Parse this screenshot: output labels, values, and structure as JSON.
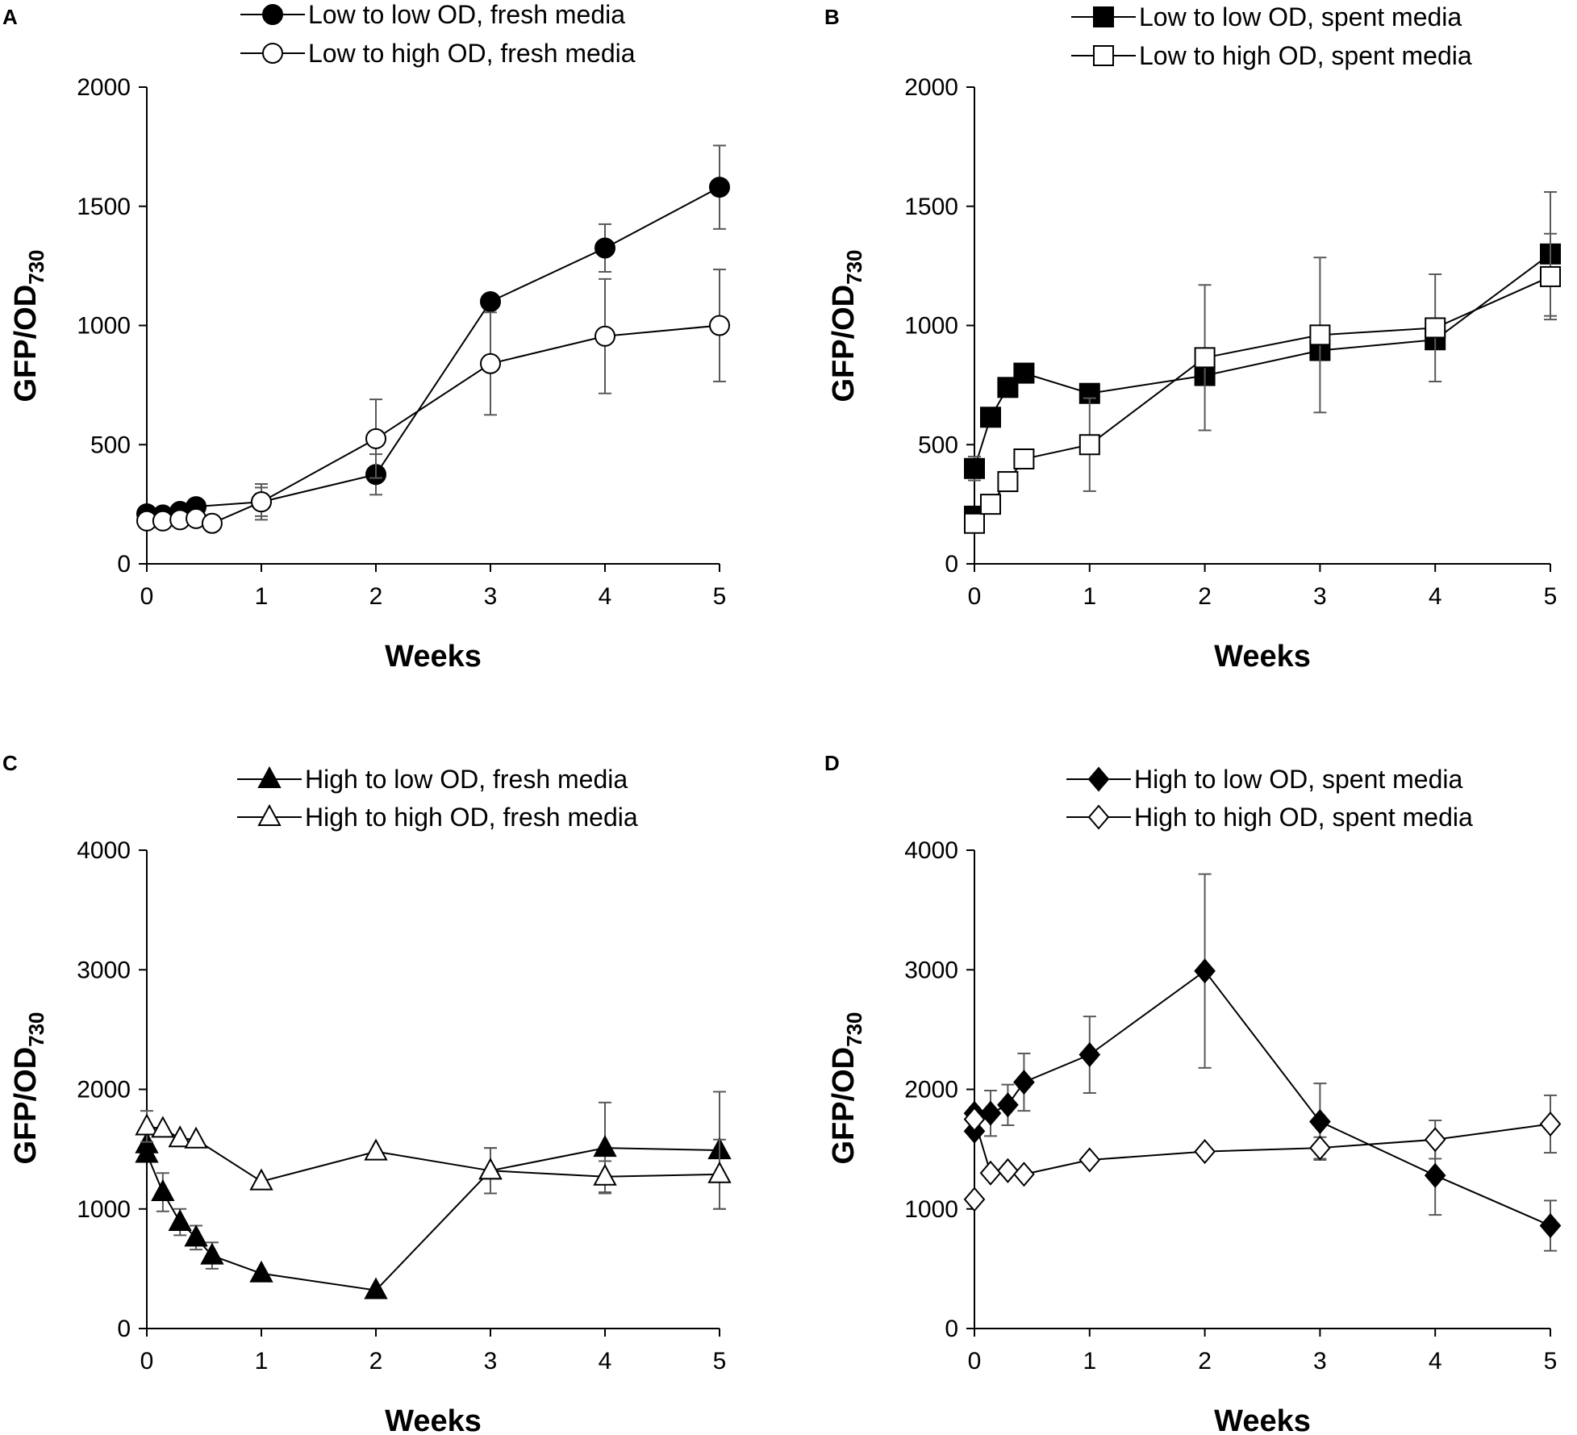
{
  "figure": {
    "colors": {
      "axis": "#000000",
      "errorbar": "#595959",
      "filled": "#000000",
      "open": "#ffffff"
    }
  },
  "chart_data": [
    {
      "id": "A",
      "type": "line",
      "panel_label": "A",
      "xlabel": "Weeks",
      "ylabel_main": "GFP/OD",
      "ylabel_sub": "730",
      "xlim": [
        0,
        5
      ],
      "ylim": [
        0,
        2000
      ],
      "xticks": [
        "0",
        "1",
        "2",
        "3",
        "4",
        "5"
      ],
      "yticks": [
        "0",
        "500",
        "1000",
        "1500",
        "2000"
      ],
      "series": [
        {
          "name": "Low to low OD, fresh media",
          "marker": "circle",
          "fill": "filled",
          "x": [
            0,
            0.14,
            0.29,
            0.43,
            1,
            2,
            3,
            4,
            5
          ],
          "y": [
            210,
            205,
            220,
            240,
            260,
            375,
            1100,
            1325,
            1580
          ],
          "err": [
            0,
            0,
            0,
            0,
            75,
            85,
            0,
            100,
            175
          ]
        },
        {
          "name": "Low to high OD, fresh media",
          "marker": "circle",
          "fill": "open",
          "x": [
            0,
            0.14,
            0.29,
            0.43,
            0.57,
            1,
            2,
            3,
            4,
            5
          ],
          "y": [
            180,
            180,
            185,
            190,
            170,
            260,
            525,
            840,
            955,
            1000
          ],
          "err": [
            0,
            0,
            0,
            0,
            0,
            60,
            165,
            215,
            240,
            235
          ]
        }
      ]
    },
    {
      "id": "B",
      "type": "line",
      "panel_label": "B",
      "xlabel": "Weeks",
      "ylabel_main": "GFP/OD",
      "ylabel_sub": "730",
      "xlim": [
        0,
        5
      ],
      "ylim": [
        0,
        2000
      ],
      "xticks": [
        "0",
        "1",
        "2",
        "3",
        "4",
        "5"
      ],
      "yticks": [
        "0",
        "500",
        "1000",
        "1500",
        "2000"
      ],
      "series": [
        {
          "name": "Low to low OD, spent media",
          "marker": "square",
          "fill": "filled",
          "x": [
            0,
            0,
            0.14,
            0.29,
            0.43,
            1,
            2,
            3,
            4,
            5
          ],
          "y": [
            200,
            400,
            615,
            740,
            800,
            715,
            790,
            895,
            940,
            1300
          ],
          "err": [
            0,
            50,
            0,
            0,
            0,
            0,
            0,
            0,
            0,
            260
          ]
        },
        {
          "name": "Low to high OD, spent media",
          "marker": "square",
          "fill": "open",
          "x": [
            0,
            0.14,
            0.29,
            0.43,
            1,
            2,
            3,
            4,
            5
          ],
          "y": [
            170,
            250,
            345,
            440,
            500,
            865,
            960,
            990,
            1205
          ],
          "err": [
            0,
            0,
            0,
            40,
            195,
            305,
            325,
            225,
            180
          ]
        }
      ]
    },
    {
      "id": "C",
      "type": "line",
      "panel_label": "C",
      "xlabel": "Weeks",
      "ylabel_main": "GFP/OD",
      "ylabel_sub": "730",
      "xlim": [
        0,
        5
      ],
      "ylim": [
        0,
        4000
      ],
      "xticks": [
        "0",
        "1",
        "2",
        "3",
        "4",
        "5"
      ],
      "yticks": [
        "0",
        "1000",
        "2000",
        "3000",
        "4000"
      ],
      "series": [
        {
          "name": "High to low OD, fresh media",
          "marker": "triangle",
          "fill": "filled",
          "x": [
            0,
            0,
            0.14,
            0.29,
            0.43,
            0.57,
            1,
            2,
            3,
            4,
            5
          ],
          "y": [
            1540,
            1460,
            1140,
            890,
            760,
            610,
            460,
            320,
            1320,
            1510,
            1490
          ],
          "err": [
            0,
            0,
            160,
            110,
            100,
            110,
            0,
            0,
            190,
            380,
            490
          ]
        },
        {
          "name": "High to high OD, fresh media",
          "marker": "triangle",
          "fill": "open",
          "x": [
            0,
            0.14,
            0.29,
            0.43,
            1,
            2,
            3,
            4,
            5
          ],
          "y": [
            1690,
            1670,
            1590,
            1580,
            1230,
            1480,
            1320,
            1270,
            1290
          ],
          "err": [
            130,
            0,
            0,
            0,
            0,
            0,
            190,
            130,
            290
          ]
        }
      ]
    },
    {
      "id": "D",
      "type": "line",
      "panel_label": "D",
      "xlabel": "Weeks",
      "ylabel_main": "GFP/OD",
      "ylabel_sub": "730",
      "xlim": [
        0,
        5
      ],
      "ylim": [
        0,
        4000
      ],
      "xticks": [
        "0",
        "1",
        "2",
        "3",
        "4",
        "5"
      ],
      "yticks": [
        "0",
        "1000",
        "2000",
        "3000",
        "4000"
      ],
      "series": [
        {
          "name": "High to low OD, spent media",
          "marker": "diamond",
          "fill": "filled",
          "x": [
            0,
            0,
            0.14,
            0.29,
            0.43,
            1,
            2,
            3,
            4,
            5
          ],
          "y": [
            1650,
            1800,
            1800,
            1870,
            2060,
            2290,
            2990,
            1730,
            1280,
            860
          ],
          "err": [
            0,
            0,
            190,
            170,
            240,
            320,
            810,
            320,
            330,
            210
          ]
        },
        {
          "name": "High to high OD, spent media",
          "marker": "diamond",
          "fill": "open",
          "x": [
            0,
            0,
            0.14,
            0.29,
            0.43,
            1,
            2,
            3,
            4,
            5
          ],
          "y": [
            1080,
            1750,
            1300,
            1320,
            1290,
            1410,
            1480,
            1510,
            1580,
            1710
          ],
          "err": [
            0,
            0,
            0,
            0,
            0,
            0,
            0,
            90,
            160,
            240
          ]
        }
      ]
    }
  ]
}
